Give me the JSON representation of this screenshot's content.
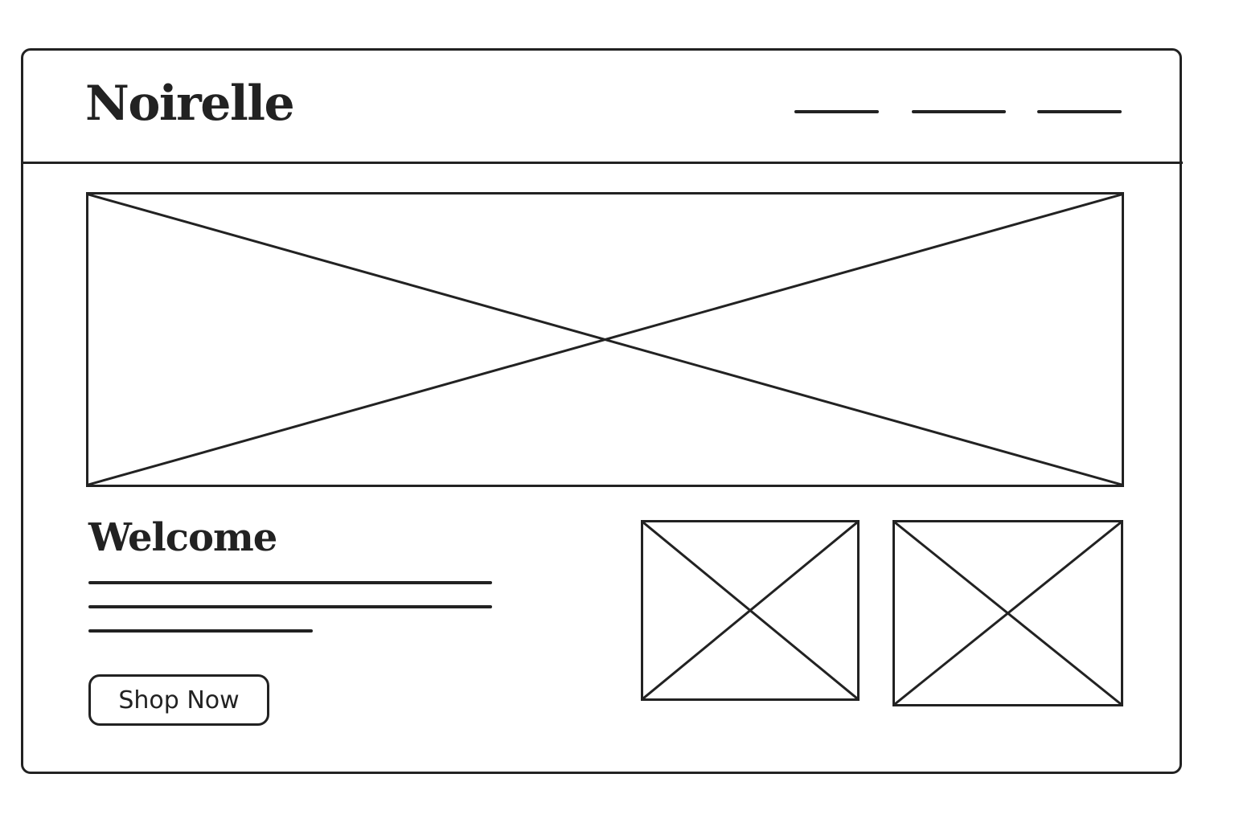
{
  "header": {
    "logo_text": "Noirelle"
  },
  "hero": {
    "image_icon": "image-placeholder-icon"
  },
  "intro": {
    "heading": "Welcome",
    "button_label": "Shop Now"
  },
  "products": {
    "image_icon": "image-placeholder-icon"
  },
  "colors": {
    "stroke": "#222222",
    "background": "#ffffff"
  }
}
